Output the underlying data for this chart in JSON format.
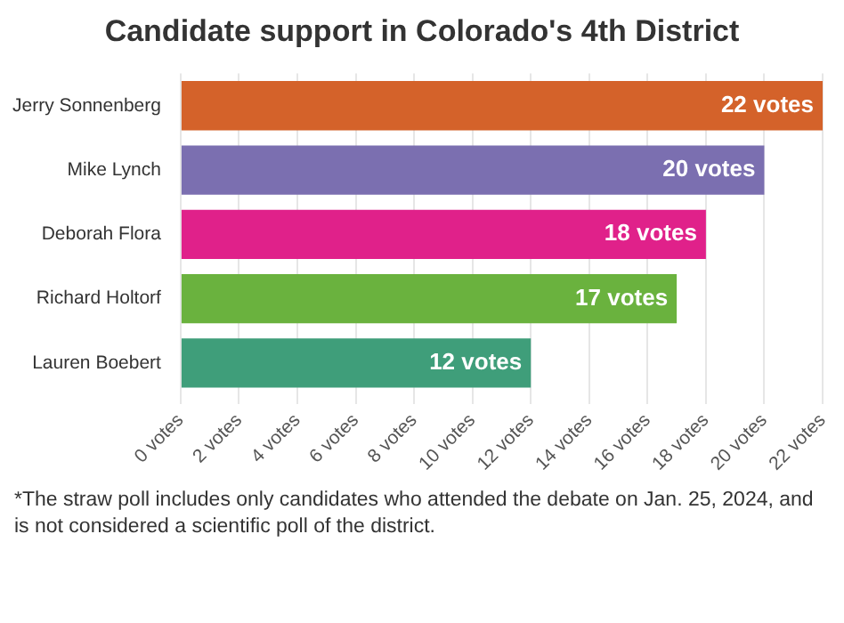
{
  "chart_data": {
    "type": "bar",
    "orientation": "horizontal",
    "title": "Candidate support in Colorado's 4th District",
    "categories": [
      "Jerry Sonnenberg",
      "Mike Lynch",
      "Deborah Flora",
      "Richard Holtorf",
      "Lauren Boebert"
    ],
    "values": [
      22,
      20,
      18,
      17,
      12
    ],
    "colors": [
      "#d4622a",
      "#7b6fb0",
      "#e0218a",
      "#6ab23e",
      "#3f9e7a"
    ],
    "value_labels": [
      "22 votes",
      "20 votes",
      "18 votes",
      "17 votes",
      "12 votes"
    ],
    "xlim": [
      0,
      22
    ],
    "xticks": [
      {
        "value": 0,
        "label": "0 votes"
      },
      {
        "value": 2,
        "label": "2 votes"
      },
      {
        "value": 4,
        "label": "4 votes"
      },
      {
        "value": 6,
        "label": "6 votes"
      },
      {
        "value": 8,
        "label": "8 votes"
      },
      {
        "value": 10,
        "label": "10 votes"
      },
      {
        "value": 12,
        "label": "12 votes"
      },
      {
        "value": 14,
        "label": "14 votes"
      },
      {
        "value": 16,
        "label": "16 votes"
      },
      {
        "value": 18,
        "label": "18 votes"
      },
      {
        "value": 20,
        "label": "20 votes"
      },
      {
        "value": 22,
        "label": "22 votes"
      }
    ],
    "grid": "x",
    "legend": false,
    "annotations": [
      "*The straw poll includes only candidates who attended the debate on Jan. 25, 2024, and is not considered a scientific poll of the district."
    ]
  }
}
